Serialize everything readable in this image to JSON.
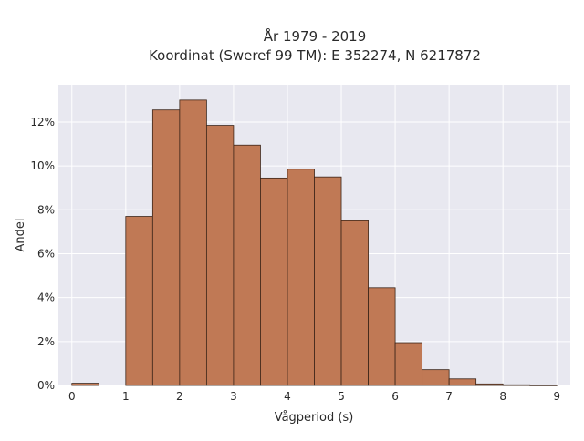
{
  "chart_data": {
    "type": "bar",
    "title": "År 1979 - 2019",
    "subtitle": "Koordinat (Sweref 99 TM): E 352274, N 6217872",
    "xlabel": "Vågperiod (s)",
    "ylabel": "Andel",
    "xlim": [
      -0.25,
      9.25
    ],
    "ylim": [
      0,
      13.7
    ],
    "x_ticks": [
      0,
      1,
      2,
      3,
      4,
      5,
      6,
      7,
      8,
      9
    ],
    "x_tick_labels": [
      "0",
      "1",
      "2",
      "3",
      "4",
      "5",
      "6",
      "7",
      "8",
      "9"
    ],
    "y_ticks": [
      0,
      2,
      4,
      6,
      8,
      10,
      12
    ],
    "y_tick_labels": [
      "0%",
      "2%",
      "4%",
      "6%",
      "8%",
      "10%",
      "12%"
    ],
    "bin_width": 0.5,
    "bins": [
      {
        "start": 0.0,
        "value": 0.1
      },
      {
        "start": 0.5,
        "value": 0.0
      },
      {
        "start": 1.0,
        "value": 7.7
      },
      {
        "start": 1.5,
        "value": 12.55
      },
      {
        "start": 2.0,
        "value": 13.0
      },
      {
        "start": 2.5,
        "value": 11.85
      },
      {
        "start": 3.0,
        "value": 10.95
      },
      {
        "start": 3.5,
        "value": 9.45
      },
      {
        "start": 4.0,
        "value": 9.85
      },
      {
        "start": 4.5,
        "value": 9.5
      },
      {
        "start": 5.0,
        "value": 7.5
      },
      {
        "start": 5.5,
        "value": 4.45
      },
      {
        "start": 6.0,
        "value": 1.95
      },
      {
        "start": 6.5,
        "value": 0.72
      },
      {
        "start": 7.0,
        "value": 0.3
      },
      {
        "start": 7.5,
        "value": 0.07
      },
      {
        "start": 8.0,
        "value": 0.03
      },
      {
        "start": 8.5,
        "value": 0.02
      }
    ],
    "grid": true,
    "colors": {
      "bar_fill": "#c07955",
      "bar_stroke": "#3b2418",
      "plot_background": "#e8e8f0",
      "grid": "#ffffff"
    }
  }
}
